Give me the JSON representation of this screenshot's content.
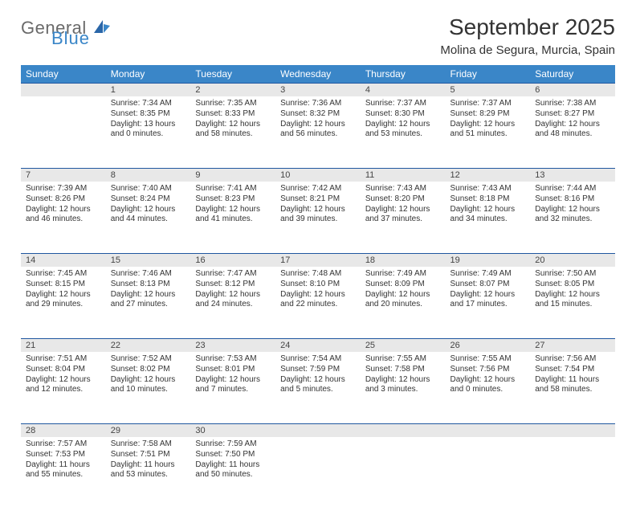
{
  "logo": {
    "general": "General",
    "blue": "Blue"
  },
  "title": "September 2025",
  "location": "Molina de Segura, Murcia, Spain",
  "colors": {
    "header_bg": "#3a86c8",
    "daynum_bg": "#e8e8e8",
    "divider": "#2057a0",
    "text": "#333333"
  },
  "weekdays": [
    "Sunday",
    "Monday",
    "Tuesday",
    "Wednesday",
    "Thursday",
    "Friday",
    "Saturday"
  ],
  "weeks": [
    [
      null,
      {
        "n": "1",
        "sr": "7:34 AM",
        "ss": "8:35 PM",
        "dl": "13 hours and 0 minutes."
      },
      {
        "n": "2",
        "sr": "7:35 AM",
        "ss": "8:33 PM",
        "dl": "12 hours and 58 minutes."
      },
      {
        "n": "3",
        "sr": "7:36 AM",
        "ss": "8:32 PM",
        "dl": "12 hours and 56 minutes."
      },
      {
        "n": "4",
        "sr": "7:37 AM",
        "ss": "8:30 PM",
        "dl": "12 hours and 53 minutes."
      },
      {
        "n": "5",
        "sr": "7:37 AM",
        "ss": "8:29 PM",
        "dl": "12 hours and 51 minutes."
      },
      {
        "n": "6",
        "sr": "7:38 AM",
        "ss": "8:27 PM",
        "dl": "12 hours and 48 minutes."
      }
    ],
    [
      {
        "n": "7",
        "sr": "7:39 AM",
        "ss": "8:26 PM",
        "dl": "12 hours and 46 minutes."
      },
      {
        "n": "8",
        "sr": "7:40 AM",
        "ss": "8:24 PM",
        "dl": "12 hours and 44 minutes."
      },
      {
        "n": "9",
        "sr": "7:41 AM",
        "ss": "8:23 PM",
        "dl": "12 hours and 41 minutes."
      },
      {
        "n": "10",
        "sr": "7:42 AM",
        "ss": "8:21 PM",
        "dl": "12 hours and 39 minutes."
      },
      {
        "n": "11",
        "sr": "7:43 AM",
        "ss": "8:20 PM",
        "dl": "12 hours and 37 minutes."
      },
      {
        "n": "12",
        "sr": "7:43 AM",
        "ss": "8:18 PM",
        "dl": "12 hours and 34 minutes."
      },
      {
        "n": "13",
        "sr": "7:44 AM",
        "ss": "8:16 PM",
        "dl": "12 hours and 32 minutes."
      }
    ],
    [
      {
        "n": "14",
        "sr": "7:45 AM",
        "ss": "8:15 PM",
        "dl": "12 hours and 29 minutes."
      },
      {
        "n": "15",
        "sr": "7:46 AM",
        "ss": "8:13 PM",
        "dl": "12 hours and 27 minutes."
      },
      {
        "n": "16",
        "sr": "7:47 AM",
        "ss": "8:12 PM",
        "dl": "12 hours and 24 minutes."
      },
      {
        "n": "17",
        "sr": "7:48 AM",
        "ss": "8:10 PM",
        "dl": "12 hours and 22 minutes."
      },
      {
        "n": "18",
        "sr": "7:49 AM",
        "ss": "8:09 PM",
        "dl": "12 hours and 20 minutes."
      },
      {
        "n": "19",
        "sr": "7:49 AM",
        "ss": "8:07 PM",
        "dl": "12 hours and 17 minutes."
      },
      {
        "n": "20",
        "sr": "7:50 AM",
        "ss": "8:05 PM",
        "dl": "12 hours and 15 minutes."
      }
    ],
    [
      {
        "n": "21",
        "sr": "7:51 AM",
        "ss": "8:04 PM",
        "dl": "12 hours and 12 minutes."
      },
      {
        "n": "22",
        "sr": "7:52 AM",
        "ss": "8:02 PM",
        "dl": "12 hours and 10 minutes."
      },
      {
        "n": "23",
        "sr": "7:53 AM",
        "ss": "8:01 PM",
        "dl": "12 hours and 7 minutes."
      },
      {
        "n": "24",
        "sr": "7:54 AM",
        "ss": "7:59 PM",
        "dl": "12 hours and 5 minutes."
      },
      {
        "n": "25",
        "sr": "7:55 AM",
        "ss": "7:58 PM",
        "dl": "12 hours and 3 minutes."
      },
      {
        "n": "26",
        "sr": "7:55 AM",
        "ss": "7:56 PM",
        "dl": "12 hours and 0 minutes."
      },
      {
        "n": "27",
        "sr": "7:56 AM",
        "ss": "7:54 PM",
        "dl": "11 hours and 58 minutes."
      }
    ],
    [
      {
        "n": "28",
        "sr": "7:57 AM",
        "ss": "7:53 PM",
        "dl": "11 hours and 55 minutes."
      },
      {
        "n": "29",
        "sr": "7:58 AM",
        "ss": "7:51 PM",
        "dl": "11 hours and 53 minutes."
      },
      {
        "n": "30",
        "sr": "7:59 AM",
        "ss": "7:50 PM",
        "dl": "11 hours and 50 minutes."
      },
      null,
      null,
      null,
      null
    ]
  ],
  "labels": {
    "sunrise": "Sunrise: ",
    "sunset": "Sunset: ",
    "daylight": "Daylight: "
  }
}
